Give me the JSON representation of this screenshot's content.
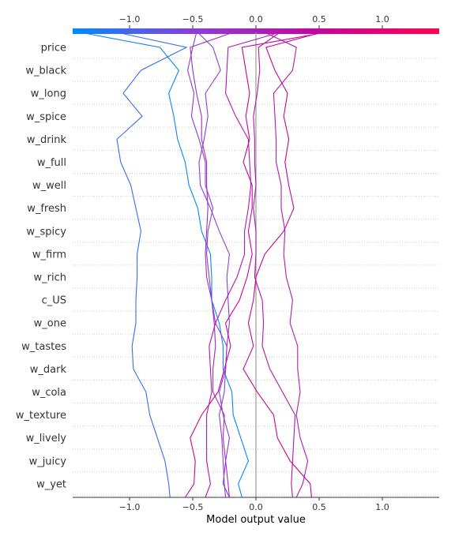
{
  "chart_data": {
    "type": "line",
    "title": "",
    "xlabel": "Model output value",
    "ylabel": "",
    "xlim": [
      -1.45,
      1.45
    ],
    "xticks": [
      -1.0,
      -0.5,
      0.0,
      0.5,
      1.0
    ],
    "xtick_labels": [
      "−1.0",
      "−0.5",
      "0.0",
      "0.5",
      "1.0"
    ],
    "base_value": 0.0,
    "features": [
      "price",
      "w_black",
      "w_long",
      "w_spice",
      "w_drink",
      "w_full",
      "w_well",
      "w_fresh",
      "w_spicy",
      "w_firm",
      "w_rich",
      "c_US",
      "w_one",
      "w_tastes",
      "w_dark",
      "w_cola",
      "w_texture",
      "w_lively",
      "w_juicy",
      "w_yet"
    ],
    "colorbar": {
      "colors": [
        "#008bfb",
        "#8d3ed4",
        "#c2069e",
        "#ff0052"
      ],
      "range": [
        -1.45,
        1.45
      ]
    },
    "series": [
      {
        "end": -1.39,
        "values": [
          -0.76,
          -0.61,
          -0.69,
          -0.65,
          -0.62,
          -0.56,
          -0.53,
          -0.46,
          -0.43,
          -0.36,
          -0.35,
          -0.35,
          -0.29,
          -0.26,
          -0.26,
          -0.19,
          -0.18,
          -0.12,
          -0.06,
          -0.14,
          -0.11
        ]
      },
      {
        "end": -1.1,
        "values": [
          -0.55,
          -0.91,
          -1.05,
          -0.9,
          -1.1,
          -1.07,
          -0.99,
          -0.95,
          -0.91,
          -0.94,
          -0.94,
          -0.95,
          -0.95,
          -0.98,
          -0.97,
          -0.87,
          -0.84,
          -0.78,
          -0.72,
          -0.69,
          -0.68
        ]
      },
      {
        "end": -0.18,
        "values": [
          -0.52,
          -0.5,
          -0.47,
          -0.43,
          -0.43,
          -0.39,
          -0.39,
          -0.38,
          -0.39,
          -0.4,
          -0.39,
          -0.35,
          -0.33,
          -0.32,
          -0.34,
          -0.34,
          -0.25,
          -0.26,
          -0.24,
          -0.22,
          -0.21
        ]
      },
      {
        "end": 0.07,
        "values": [
          0.32,
          0.29,
          0.14,
          0.15,
          0.16,
          0.16,
          0.2,
          0.2,
          0.23,
          0.22,
          0.24,
          0.29,
          0.27,
          0.33,
          0.33,
          0.35,
          0.32,
          0.35,
          0.41,
          0.37,
          0.32
        ]
      },
      {
        "end": -0.47,
        "values": [
          -0.5,
          -0.54,
          -0.49,
          -0.51,
          -0.45,
          -0.4,
          -0.4,
          -0.34,
          -0.38,
          -0.39,
          -0.37,
          -0.35,
          -0.32,
          -0.23,
          -0.24,
          -0.25,
          -0.29,
          -0.27,
          -0.26,
          -0.25,
          -0.24
        ]
      },
      {
        "end": 0.19,
        "values": [
          0.02,
          0.03,
          0.01,
          -0.02,
          -0.01,
          -0.01,
          0.0,
          -0.02,
          0.0,
          0.0,
          -0.01,
          0.05,
          0.06,
          0.05,
          0.11,
          0.21,
          0.31,
          0.3,
          0.29,
          0.28,
          0.29
        ]
      },
      {
        "end": 0.52,
        "values": [
          0.08,
          0.15,
          0.25,
          0.22,
          0.26,
          0.23,
          0.26,
          0.3,
          0.22,
          0.07,
          0.0,
          -0.02,
          -0.06,
          -0.02,
          -0.1,
          0.01,
          0.14,
          0.17,
          0.27,
          0.43,
          0.44
        ]
      },
      {
        "end": -0.46,
        "values": [
          -0.34,
          -0.28,
          -0.4,
          -0.38,
          -0.41,
          -0.45,
          -0.44,
          -0.36,
          -0.29,
          -0.21,
          -0.23,
          -0.22,
          -0.21,
          -0.23,
          -0.24,
          -0.29,
          -0.26,
          -0.21,
          -0.24,
          -0.26,
          -0.21
        ]
      },
      {
        "end": 0.55,
        "values": [
          -0.11,
          -0.08,
          -0.05,
          -0.08,
          -0.05,
          -0.1,
          -0.03,
          -0.03,
          -0.06,
          -0.03,
          -0.07,
          -0.13,
          -0.24,
          -0.2,
          -0.25,
          -0.3,
          -0.43,
          -0.52,
          -0.48,
          -0.49,
          -0.56
        ]
      },
      {
        "end": 0.19,
        "values": [
          -0.22,
          -0.23,
          -0.24,
          -0.16,
          -0.06,
          -0.05,
          -0.04,
          -0.06,
          -0.09,
          -0.09,
          -0.15,
          -0.24,
          -0.32,
          -0.37,
          -0.36,
          -0.35,
          -0.39,
          -0.39,
          -0.39,
          -0.36,
          -0.4
        ]
      }
    ]
  }
}
